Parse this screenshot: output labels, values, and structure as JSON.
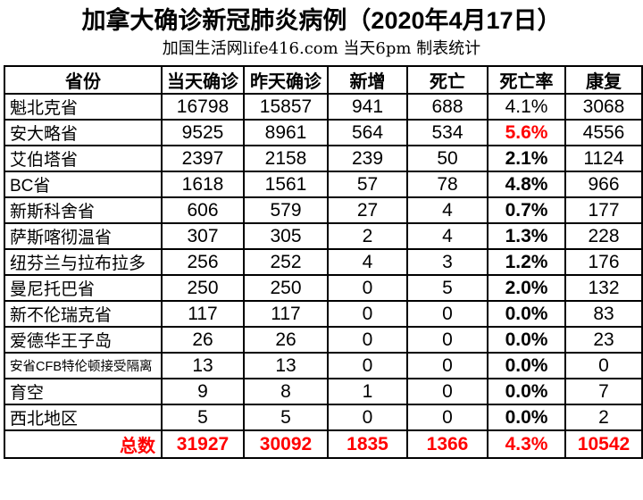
{
  "page": {
    "title": "加拿大确诊新冠肺炎病例（2020年4月17日）",
    "subtitle": "加国生活网life416.com 当天6pm 制表统计"
  },
  "colors": {
    "background": "#FFFFFF",
    "text": "#000000",
    "border": "#000000",
    "accent_red": "#FF0000"
  },
  "table": {
    "columns": [
      "省份",
      "当天确诊",
      "昨天确诊",
      "新增",
      "死亡",
      "死亡率",
      "康复"
    ],
    "rows": [
      {
        "province": "魁北克省",
        "today": "16798",
        "yesterday": "15857",
        "new_cases": "941",
        "deaths": "688",
        "death_rate": "4.1%",
        "recovered": "3068",
        "rate_style": "normal"
      },
      {
        "province": "安大略省",
        "today": "9525",
        "yesterday": "8961",
        "new_cases": "564",
        "deaths": "534",
        "death_rate": "5.6%",
        "recovered": "4556",
        "rate_style": "red-bold"
      },
      {
        "province": "艾伯塔省",
        "today": "2397",
        "yesterday": "2158",
        "new_cases": "239",
        "deaths": "50",
        "death_rate": "2.1%",
        "recovered": "1124",
        "rate_style": "bold"
      },
      {
        "province": "BC省",
        "today": "1618",
        "yesterday": "1561",
        "new_cases": "57",
        "deaths": "78",
        "death_rate": "4.8%",
        "recovered": "966",
        "rate_style": "bold"
      },
      {
        "province": "新斯科舍省",
        "today": "606",
        "yesterday": "579",
        "new_cases": "27",
        "deaths": "4",
        "death_rate": "0.7%",
        "recovered": "177",
        "rate_style": "bold"
      },
      {
        "province": "萨斯喀彻温省",
        "today": "307",
        "yesterday": "305",
        "new_cases": "2",
        "deaths": "4",
        "death_rate": "1.3%",
        "recovered": "228",
        "rate_style": "bold"
      },
      {
        "province": "纽芬兰与拉布拉多",
        "today": "256",
        "yesterday": "252",
        "new_cases": "4",
        "deaths": "3",
        "death_rate": "1.2%",
        "recovered": "176",
        "rate_style": "bold"
      },
      {
        "province": "曼尼托巴省",
        "today": "250",
        "yesterday": "250",
        "new_cases": "0",
        "deaths": "5",
        "death_rate": "2.0%",
        "recovered": "132",
        "rate_style": "bold"
      },
      {
        "province": "新不伦瑞克省",
        "today": "117",
        "yesterday": "117",
        "new_cases": "0",
        "deaths": "0",
        "death_rate": "0.0%",
        "recovered": "83",
        "rate_style": "bold"
      },
      {
        "province": "爱德华王子岛",
        "today": "26",
        "yesterday": "26",
        "new_cases": "0",
        "deaths": "0",
        "death_rate": "0.0%",
        "recovered": "23",
        "rate_style": "bold"
      },
      {
        "province": "安省CFB特伦顿接受隔离",
        "today": "13",
        "yesterday": "13",
        "new_cases": "0",
        "deaths": "0",
        "death_rate": "0.0%",
        "recovered": "0",
        "rate_style": "bold",
        "small": true
      },
      {
        "province": "育空",
        "today": "9",
        "yesterday": "8",
        "new_cases": "1",
        "deaths": "0",
        "death_rate": "0.0%",
        "recovered": "7",
        "rate_style": "bold"
      },
      {
        "province": "西北地区",
        "today": "5",
        "yesterday": "5",
        "new_cases": "0",
        "deaths": "0",
        "death_rate": "0.0%",
        "recovered": "2",
        "rate_style": "bold"
      }
    ],
    "total_row": {
      "label": "总数",
      "today": "31927",
      "yesterday": "30092",
      "new_cases": "1835",
      "deaths": "1366",
      "death_rate": "4.3%",
      "recovered": "10542"
    }
  }
}
